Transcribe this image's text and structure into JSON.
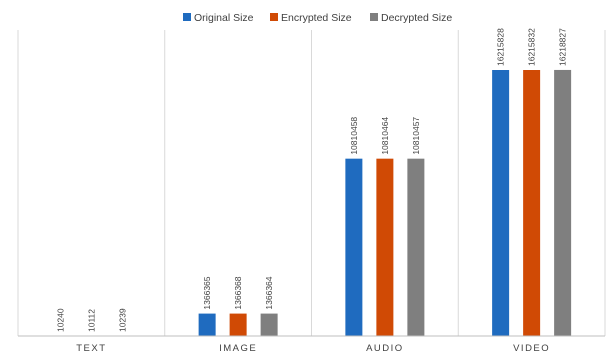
{
  "chart_data": {
    "type": "bar",
    "categories": [
      "TEXT",
      "IMAGE",
      "AUDIO",
      "VIDEO"
    ],
    "series": [
      {
        "name": "Original Size",
        "color": "#1f6bbf",
        "values": [
          10240,
          1366365,
          10810458,
          16215828
        ]
      },
      {
        "name": "Encrypted Size",
        "color": "#d04a05",
        "values": [
          10112,
          1366368,
          10810464,
          16215832
        ]
      },
      {
        "name": "Decrypted Size",
        "color": "#7f7f7f",
        "values": [
          10239,
          1366364,
          10810457,
          16218827
        ]
      }
    ],
    "title": "",
    "xlabel": "",
    "ylabel": "",
    "ylim": [
      0,
      18000000
    ],
    "grid": false,
    "legend": "top-center",
    "data_labels": true
  }
}
